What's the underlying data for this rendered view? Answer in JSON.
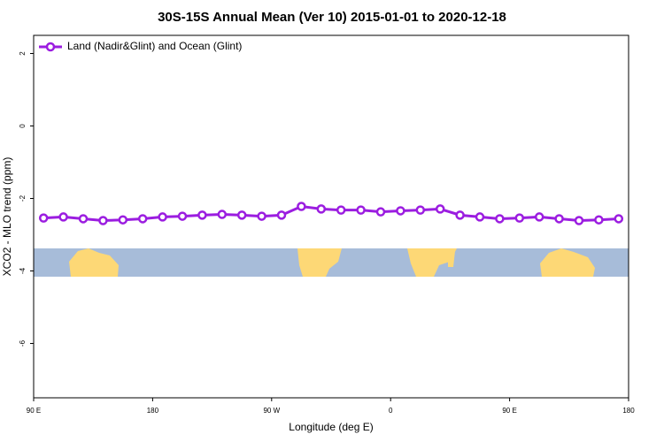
{
  "chart_data": {
    "type": "line",
    "title": "30S-15S Annual Mean (Ver 10)   2015-01-01 to 2020-12-18",
    "x_label": "Longitude (deg E)",
    "y_label": "XCO2 - MLO trend (ppm)",
    "x": [
      97.5,
      112.5,
      127.5,
      142.5,
      157.5,
      172.5,
      187.5,
      202.5,
      217.5,
      232.5,
      247.5,
      262.5,
      277.5,
      292.5,
      307.5,
      322.5,
      337.5,
      352.5,
      367.5,
      382.5,
      397.5,
      412.5,
      427.5,
      442.5,
      457.5,
      472.5,
      487.5,
      502.5,
      517.5,
      532.5
    ],
    "series": [
      {
        "name": "Land (Nadir&Glint) and Ocean (Glint)",
        "color": "#9b1de0",
        "values": [
          -2.54,
          -2.51,
          -2.56,
          -2.61,
          -2.59,
          -2.56,
          -2.51,
          -2.49,
          -2.46,
          -2.44,
          -2.46,
          -2.49,
          -2.46,
          -2.22,
          -2.29,
          -2.32,
          -2.32,
          -2.37,
          -2.34,
          -2.32,
          -2.29,
          -2.46,
          -2.51,
          -2.56,
          -2.54,
          -2.51,
          -2.56,
          -2.61,
          -2.59,
          -2.56
        ]
      }
    ],
    "xlim": [
      90,
      540
    ],
    "xticks": [
      {
        "value": 90,
        "label": "90 E"
      },
      {
        "value": 180,
        "label": "180"
      },
      {
        "value": 270,
        "label": "90 W"
      },
      {
        "value": 360,
        "label": "0"
      },
      {
        "value": 450,
        "label": "90 E"
      },
      {
        "value": 540,
        "label": "180"
      }
    ],
    "ylim": [
      -7.5,
      2.5
    ],
    "yticks": [
      2,
      0,
      -2,
      -4,
      -6
    ],
    "legend": "top-left"
  }
}
